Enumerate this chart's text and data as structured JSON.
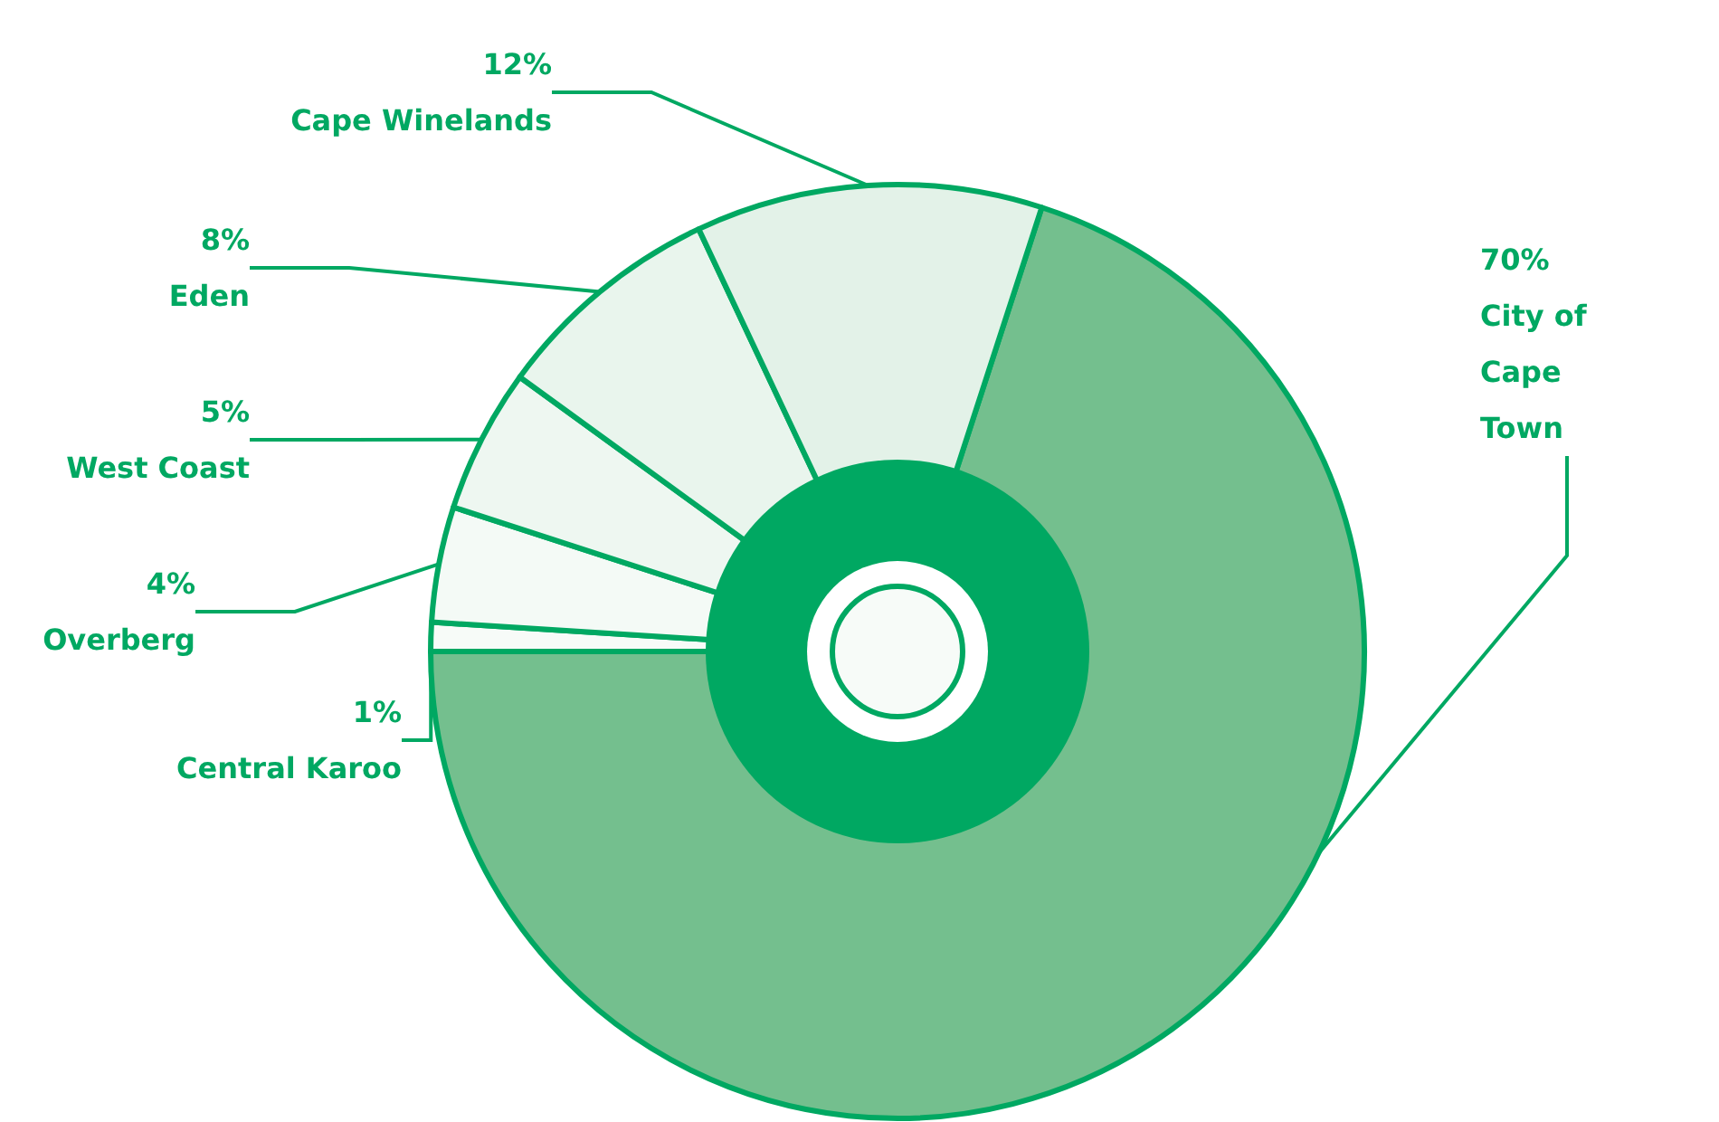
{
  "chart_data": {
    "type": "donut",
    "categories": [
      "City of Cape Town",
      "Central Karoo",
      "Overberg",
      "West Coast",
      "Eden",
      "Cape Winelands"
    ],
    "values": [
      70,
      1,
      4,
      5,
      8,
      12
    ],
    "colors": [
      "#74bf8e",
      "#f7fbf8",
      "#f4faf6",
      "#eef7f1",
      "#e9f5ed",
      "#e3f2e8"
    ],
    "value_labels": [
      "70%",
      "1%",
      "4%",
      "5%",
      "8%",
      "12%"
    ],
    "legend": false
  }
}
